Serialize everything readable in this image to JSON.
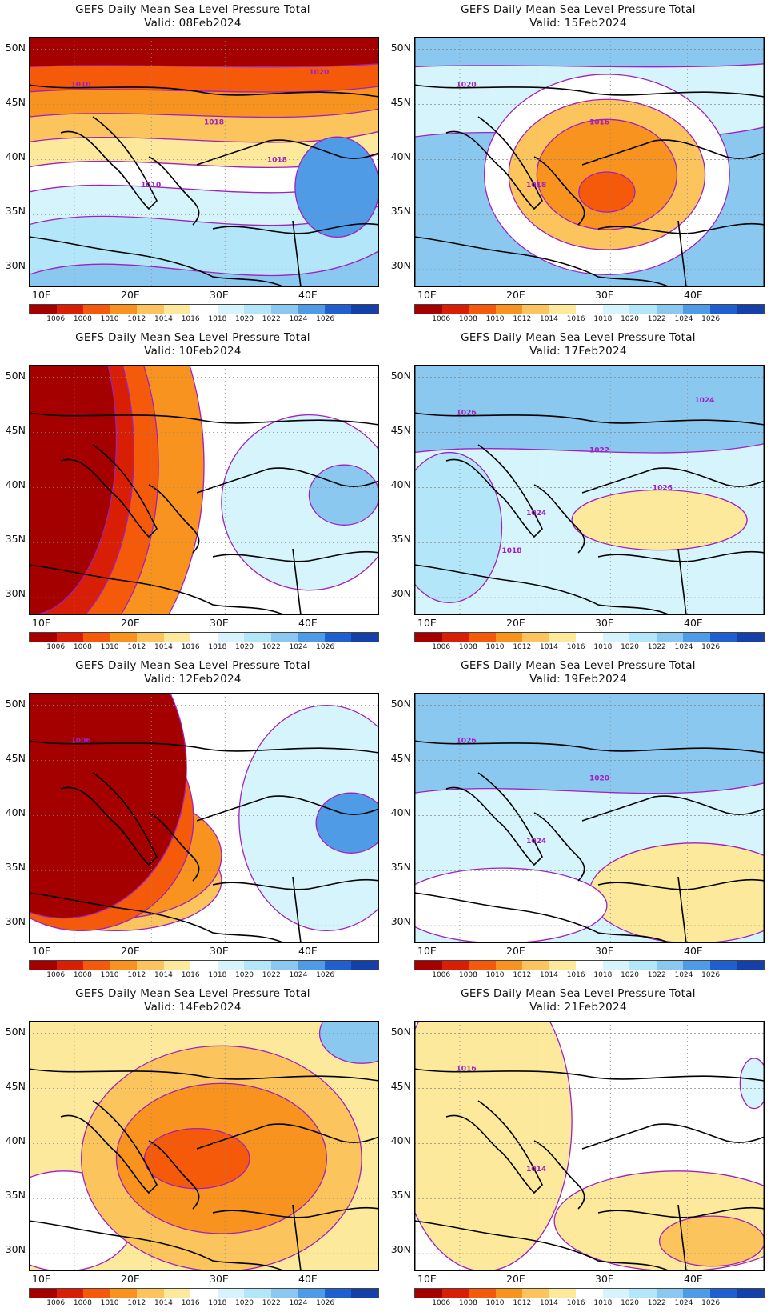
{
  "panels": [
    {
      "title": "GEFS Daily Mean Sea Level Pressure Total",
      "valid": "Valid: 08Feb2024",
      "scheme": "a",
      "contour_labels": [
        "1010",
        "1010",
        "1018",
        "1018",
        "1020"
      ]
    },
    {
      "title": "GEFS Daily Mean Sea Level Pressure Total",
      "valid": "Valid: 15Feb2024",
      "scheme": "b",
      "contour_labels": [
        "1020",
        "1018",
        "1016"
      ]
    },
    {
      "title": "GEFS Daily Mean Sea Level Pressure Total",
      "valid": "Valid: 10Feb2024",
      "scheme": "c",
      "contour_labels": []
    },
    {
      "title": "GEFS Daily Mean Sea Level Pressure Total",
      "valid": "Valid: 17Feb2024",
      "scheme": "d",
      "contour_labels": [
        "1026",
        "1024",
        "1022",
        "1026",
        "1024",
        "1018"
      ]
    },
    {
      "title": "GEFS Daily Mean Sea Level Pressure Total",
      "valid": "Valid: 12Feb2024",
      "scheme": "e",
      "contour_labels": [
        "1006"
      ]
    },
    {
      "title": "GEFS Daily Mean Sea Level Pressure Total",
      "valid": "Valid: 19Feb2024",
      "scheme": "f",
      "contour_labels": [
        "1026",
        "1024",
        "1020"
      ]
    },
    {
      "title": "GEFS Daily Mean Sea Level Pressure Total",
      "valid": "Valid: 14Feb2024",
      "scheme": "g",
      "contour_labels": []
    },
    {
      "title": "GEFS Daily Mean Sea Level Pressure Total",
      "valid": "Valid: 21Feb2024",
      "scheme": "h",
      "contour_labels": [
        "1016",
        "1014"
      ]
    }
  ],
  "lat_labels": [
    "50N",
    "45N",
    "40N",
    "35N",
    "30N"
  ],
  "lon_labels": [
    "10E",
    "20E",
    "30E",
    "40E"
  ],
  "colorbar": {
    "labels": [
      "1006",
      "1008",
      "1010",
      "1012",
      "1014",
      "1016",
      "1018",
      "1020",
      "1022",
      "1024",
      "1026"
    ],
    "colors": [
      "#a40000",
      "#d81e05",
      "#f45a0a",
      "#f7931e",
      "#fbc45c",
      "#fde99b",
      "#ffffff",
      "#d6f4fb",
      "#b3e6f8",
      "#8bc8f0",
      "#4f9be6",
      "#1f5fcf",
      "#1440a8"
    ]
  }
}
